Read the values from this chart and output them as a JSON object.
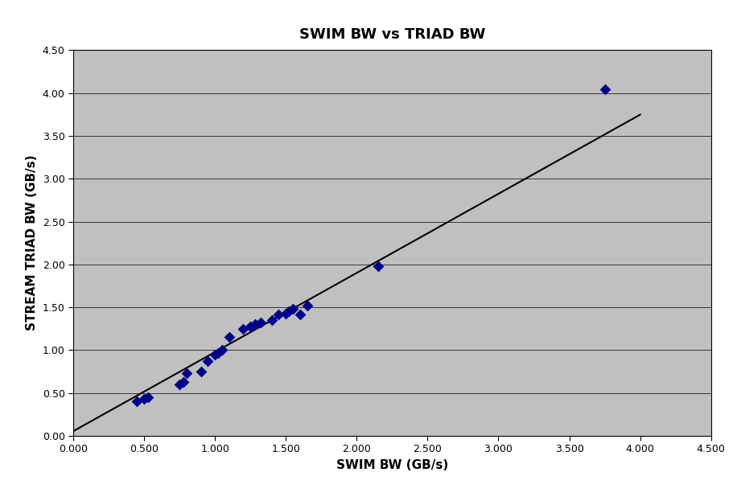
{
  "title": "SWIM BW vs TRIAD BW",
  "xlabel": "SWIM BW (GB/s)",
  "ylabel": "STREAM TRIAD BW (GB/s)",
  "scatter_x": [
    0.45,
    0.5,
    0.53,
    0.75,
    0.78,
    0.8,
    0.9,
    0.95,
    1.0,
    1.02,
    1.05,
    1.1,
    1.2,
    1.25,
    1.28,
    1.32,
    1.4,
    1.45,
    1.5,
    1.52,
    1.55,
    1.6,
    1.65,
    2.15,
    3.75
  ],
  "scatter_y": [
    0.4,
    0.43,
    0.45,
    0.6,
    0.63,
    0.73,
    0.75,
    0.87,
    0.95,
    0.97,
    1.0,
    1.15,
    1.25,
    1.28,
    1.3,
    1.32,
    1.35,
    1.42,
    1.43,
    1.45,
    1.48,
    1.42,
    1.52,
    1.98,
    4.04
  ],
  "marker_color": "#00008B",
  "marker_size": 7,
  "line_color": "#000000",
  "line_width": 1.5,
  "bg_color": "#C0C0C0",
  "fig_bg_color": "#ffffff",
  "xlim": [
    0.0,
    4.5
  ],
  "ylim": [
    0.0,
    4.5
  ],
  "xtick_major": 0.5,
  "ytick_major": 0.5,
  "title_fontsize": 13,
  "label_fontsize": 11,
  "tick_fontsize": 9,
  "line_x_start": 0.0,
  "line_x_end": 4.0,
  "line_slope": 0.923,
  "line_intercept": 0.055
}
